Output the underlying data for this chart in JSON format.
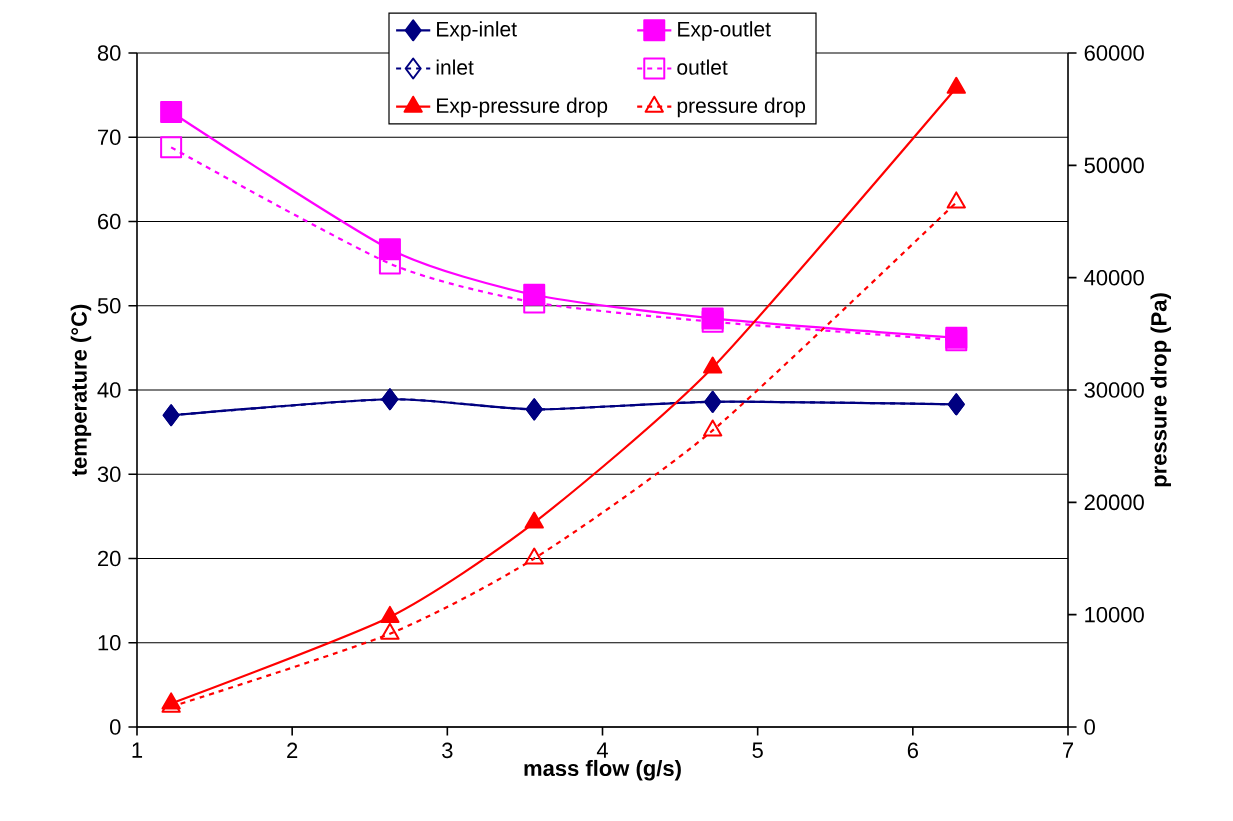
{
  "chart_data": {
    "type": "line",
    "xlabel": "mass flow (g/s)",
    "ylabel": "temperature (°C)",
    "y2label": "pressure drop (Pa)",
    "x": [
      1.22,
      2.63,
      3.56,
      4.71,
      6.28
    ],
    "series": [
      {
        "name": "Exp-inlet",
        "color": "#000080",
        "values": [
          37.0,
          38.9,
          37.7,
          38.6,
          38.3
        ],
        "axis": "y",
        "marker": "diamond",
        "line_style": "solid"
      },
      {
        "name": "Exp-outlet",
        "color": "#ff00ff",
        "values": [
          73.0,
          56.7,
          51.3,
          48.5,
          46.2
        ],
        "axis": "y",
        "marker": "square",
        "line_style": "solid"
      },
      {
        "name": "inlet",
        "color": "#000080",
        "values": [
          37.0,
          38.9,
          37.7,
          38.6,
          38.3
        ],
        "axis": "y",
        "marker": "diamond",
        "line_style": "dotted"
      },
      {
        "name": "outlet",
        "color": "#ff00ff",
        "values": [
          68.8,
          55.0,
          50.4,
          48.1,
          45.9
        ],
        "axis": "y",
        "marker": "square",
        "line_style": "dotted"
      },
      {
        "name": "Exp-pressure drop",
        "color": "#ff0000",
        "values": [
          2100,
          9800,
          18200,
          32000,
          56900
        ],
        "axis": "y2",
        "marker": "triangle",
        "line_style": "solid"
      },
      {
        "name": "pressure drop",
        "color": "#ff0000",
        "values": [
          1800,
          8300,
          15000,
          26400,
          46700
        ],
        "axis": "y2",
        "marker": "triangle",
        "line_style": "dotted"
      }
    ],
    "xlim": [
      1,
      7
    ],
    "xticks": [
      1,
      2,
      3,
      4,
      5,
      6,
      7
    ],
    "ylim": [
      0,
      80
    ],
    "yticks": [
      0,
      10,
      20,
      30,
      40,
      50,
      60,
      70,
      80
    ],
    "y2lim": [
      0,
      60000
    ],
    "y2ticks": [
      0,
      10000,
      20000,
      30000,
      40000,
      50000,
      60000
    ],
    "grid": "y",
    "legend": "top"
  }
}
